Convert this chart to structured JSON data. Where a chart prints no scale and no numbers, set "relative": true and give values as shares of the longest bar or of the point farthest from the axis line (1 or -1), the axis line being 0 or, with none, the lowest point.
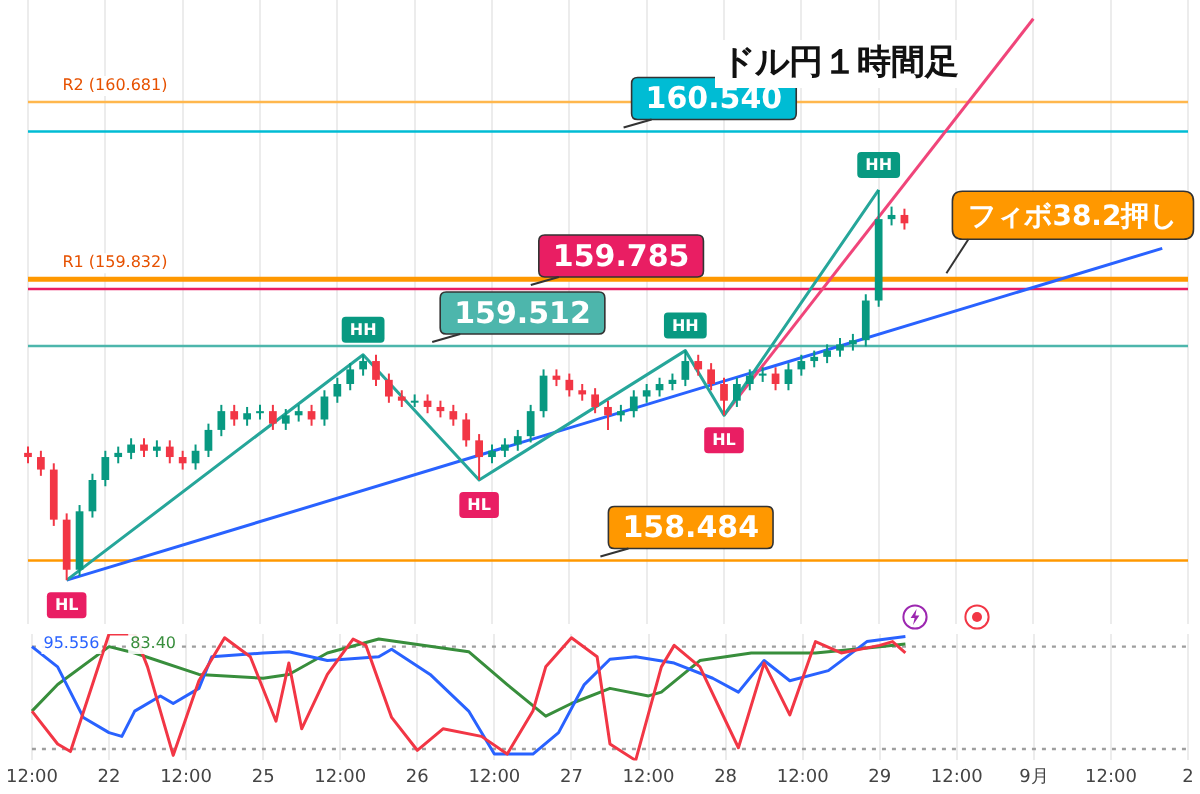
{
  "chart_data": [
    {
      "type": "candlestick",
      "title": "ドル円１時間足",
      "categories": [
        null,
        null,
        null,
        null,
        null,
        null,
        null,
        null,
        null,
        null,
        null,
        null,
        null,
        null,
        null,
        null,
        null,
        null,
        null,
        null,
        null,
        null,
        null,
        null,
        null,
        null,
        null,
        null,
        null,
        null,
        null,
        null,
        null,
        null,
        null,
        null,
        null,
        null,
        null,
        null,
        null,
        null,
        null,
        null,
        null,
        null,
        null,
        null,
        null,
        null,
        null,
        null,
        null,
        null,
        null,
        null,
        null,
        null,
        null,
        null,
        null,
        null,
        null,
        null,
        null,
        null,
        null,
        null,
        null,
        null,
        null,
        null,
        null,
        null,
        null,
        null,
        null,
        null,
        null,
        null,
        null,
        null,
        null,
        null,
        null,
        null,
        null,
        null,
        null,
        null,
        null
      ],
      "ohlc": [
        [
          159.0,
          159.03,
          158.95,
          158.98
        ],
        [
          158.98,
          159.01,
          158.89,
          158.92
        ],
        [
          158.92,
          158.95,
          158.65,
          158.68
        ],
        [
          158.68,
          158.71,
          158.39,
          158.44
        ],
        [
          158.44,
          158.75,
          158.41,
          158.72
        ],
        [
          158.72,
          158.9,
          158.69,
          158.87
        ],
        [
          158.87,
          159.01,
          158.84,
          158.98
        ],
        [
          158.98,
          159.03,
          158.95,
          159.0
        ],
        [
          159.0,
          159.07,
          158.97,
          159.04
        ],
        [
          159.04,
          159.07,
          158.98,
          159.01
        ],
        [
          159.01,
          159.06,
          158.98,
          159.03
        ],
        [
          159.03,
          159.06,
          158.95,
          158.98
        ],
        [
          158.98,
          159.01,
          158.92,
          158.95
        ],
        [
          158.95,
          159.04,
          158.92,
          159.01
        ],
        [
          159.01,
          159.14,
          158.98,
          159.11
        ],
        [
          159.11,
          159.23,
          159.08,
          159.2
        ],
        [
          159.2,
          159.23,
          159.13,
          159.16
        ],
        [
          159.16,
          159.22,
          159.13,
          159.19
        ],
        [
          159.19,
          159.23,
          159.16,
          159.2
        ],
        [
          159.2,
          159.23,
          159.11,
          159.14
        ],
        [
          159.14,
          159.21,
          159.11,
          159.18
        ],
        [
          159.18,
          159.23,
          159.15,
          159.2
        ],
        [
          159.2,
          159.23,
          159.13,
          159.16
        ],
        [
          159.16,
          159.3,
          159.13,
          159.27
        ],
        [
          159.27,
          159.36,
          159.24,
          159.33
        ],
        [
          159.33,
          159.43,
          159.3,
          159.4
        ],
        [
          159.4,
          159.47,
          159.37,
          159.44
        ],
        [
          159.44,
          159.47,
          159.32,
          159.35
        ],
        [
          159.35,
          159.38,
          159.24,
          159.27
        ],
        [
          159.27,
          159.3,
          159.22,
          159.25
        ],
        [
          159.25,
          159.28,
          159.22,
          159.25
        ],
        [
          159.25,
          159.28,
          159.19,
          159.22
        ],
        [
          159.22,
          159.25,
          159.17,
          159.2
        ],
        [
          159.2,
          159.23,
          159.13,
          159.16
        ],
        [
          159.16,
          159.19,
          159.03,
          159.06
        ],
        [
          159.06,
          159.09,
          158.87,
          158.98
        ],
        [
          158.98,
          159.04,
          158.95,
          159.01
        ],
        [
          159.01,
          159.07,
          158.98,
          159.04
        ],
        [
          159.04,
          159.11,
          159.01,
          159.08
        ],
        [
          159.08,
          159.23,
          159.05,
          159.2
        ],
        [
          159.2,
          159.4,
          159.17,
          159.37
        ],
        [
          159.37,
          159.4,
          159.32,
          159.35
        ],
        [
          159.35,
          159.38,
          159.27,
          159.3
        ],
        [
          159.3,
          159.33,
          159.25,
          159.28
        ],
        [
          159.28,
          159.31,
          159.19,
          159.22
        ],
        [
          159.22,
          159.25,
          159.11,
          159.18
        ],
        [
          159.18,
          159.23,
          159.15,
          159.2
        ],
        [
          159.2,
          159.3,
          159.17,
          159.27
        ],
        [
          159.27,
          159.33,
          159.24,
          159.3
        ],
        [
          159.3,
          159.36,
          159.27,
          159.33
        ],
        [
          159.33,
          159.38,
          159.3,
          159.35
        ],
        [
          159.35,
          159.49,
          159.32,
          159.44
        ],
        [
          159.44,
          159.47,
          159.37,
          159.4
        ],
        [
          159.4,
          159.43,
          159.3,
          159.33
        ],
        [
          159.33,
          159.36,
          159.18,
          159.25
        ],
        [
          159.25,
          159.36,
          159.22,
          159.33
        ],
        [
          159.33,
          159.4,
          159.3,
          159.37
        ],
        [
          159.37,
          159.41,
          159.34,
          159.38
        ],
        [
          159.38,
          159.41,
          159.3,
          159.33
        ],
        [
          159.33,
          159.43,
          159.3,
          159.4
        ],
        [
          159.4,
          159.47,
          159.37,
          159.44
        ],
        [
          159.44,
          159.49,
          159.41,
          159.46
        ],
        [
          159.46,
          159.52,
          159.43,
          159.49
        ],
        [
          159.49,
          159.55,
          159.46,
          159.52
        ],
        [
          159.52,
          159.57,
          159.49,
          159.54
        ],
        [
          159.54,
          159.76,
          159.51,
          159.73
        ],
        [
          159.73,
          160.26,
          159.7,
          160.12
        ],
        [
          160.12,
          160.18,
          160.09,
          160.14
        ],
        [
          160.14,
          160.17,
          160.07,
          160.1
        ],
        null,
        null,
        null,
        null,
        null,
        null,
        null,
        null,
        null,
        null,
        null,
        null,
        null,
        null,
        null,
        null,
        null,
        null,
        null,
        null,
        null,
        null
      ],
      "colors": [
        "#f23645",
        "#f23645",
        "#f23645",
        "#f23645",
        "#089981",
        "#089981",
        "#089981",
        "#089981",
        "#089981",
        "#f23645",
        "#089981",
        "#f23645",
        "#f23645",
        "#089981",
        "#089981",
        "#089981",
        "#f23645",
        "#089981",
        "#089981",
        "#f23645",
        "#089981",
        "#089981",
        "#f23645",
        "#089981",
        "#089981",
        "#089981",
        "#089981",
        "#f23645",
        "#f23645",
        "#f23645",
        "#089981",
        "#f23645",
        "#f23645",
        "#f23645",
        "#f23645",
        "#f23645",
        "#089981",
        "#089981",
        "#089981",
        "#089981",
        "#089981",
        "#f23645",
        "#f23645",
        "#f23645",
        "#f23645",
        "#f23645",
        "#089981",
        "#089981",
        "#089981",
        "#089981",
        "#089981",
        "#089981",
        "#f23645",
        "#f23645",
        "#f23645",
        "#089981",
        "#089981",
        "#089981",
        "#f23645",
        "#089981",
        "#089981",
        "#089981",
        "#089981",
        "#089981",
        "#089981",
        "#089981",
        "#089981",
        "#089981",
        "#f23645",
        null,
        null,
        null,
        null,
        null,
        null,
        null,
        null,
        null,
        null,
        null,
        null,
        null,
        null,
        null,
        null,
        null,
        null,
        null,
        null,
        null,
        null
      ],
      "ylim": [
        158.18,
        161.17
      ],
      "tick_labels": false,
      "grid": "x",
      "series": [
        {
          "type": "line",
          "color": "#26a69a",
          "values": [
            null,
            null,
            null,
            158.39,
            null,
            null,
            null,
            null,
            null,
            null,
            null,
            null,
            null,
            null,
            null,
            null,
            null,
            null,
            null,
            null,
            null,
            null,
            null,
            null,
            null,
            null,
            159.47,
            null,
            null,
            null,
            null,
            null,
            null,
            null,
            null,
            158.87,
            null,
            null,
            null,
            null,
            null,
            null,
            null,
            null,
            null,
            null,
            null,
            null,
            null,
            null,
            null,
            159.49,
            null,
            null,
            159.18,
            null,
            null,
            null,
            null,
            null,
            null,
            null,
            null,
            null,
            null,
            null,
            160.26,
            null,
            null,
            null,
            null,
            null,
            null,
            null,
            null,
            null,
            null,
            null,
            null,
            null,
            null,
            null,
            null,
            null,
            null,
            null,
            null,
            null,
            null,
            null,
            null
          ],
          "value_labels": [
            null,
            null,
            null,
            "HL",
            null,
            null,
            null,
            null,
            null,
            null,
            null,
            null,
            null,
            null,
            null,
            null,
            null,
            null,
            null,
            null,
            null,
            null,
            null,
            null,
            null,
            null,
            "HH",
            null,
            null,
            null,
            null,
            null,
            null,
            null,
            null,
            "HL",
            null,
            null,
            null,
            null,
            null,
            null,
            null,
            null,
            null,
            null,
            null,
            null,
            null,
            null,
            null,
            "HH",
            null,
            null,
            "HL",
            null,
            null,
            null,
            null,
            null,
            null,
            null,
            null,
            null,
            null,
            null,
            "HH",
            null,
            null,
            null,
            null,
            null,
            null,
            null,
            null,
            null,
            null,
            null,
            null,
            null,
            null,
            null,
            null,
            null,
            null,
            null,
            null,
            null,
            null,
            null,
            null
          ]
        },
        {
          "type": "line",
          "color": "#f0457a",
          "values": [
            null,
            null,
            null,
            null,
            null,
            null,
            null,
            null,
            null,
            null,
            null,
            null,
            null,
            null,
            null,
            null,
            null,
            null,
            null,
            null,
            null,
            null,
            null,
            null,
            null,
            null,
            null,
            null,
            null,
            null,
            null,
            null,
            null,
            null,
            null,
            null,
            null,
            null,
            null,
            null,
            null,
            null,
            null,
            null,
            null,
            null,
            null,
            null,
            null,
            null,
            null,
            null,
            null,
            null,
            159.18,
            null,
            null,
            null,
            null,
            null,
            null,
            null,
            null,
            null,
            null,
            null,
            null,
            null,
            null,
            null,
            null,
            null,
            null,
            null,
            null,
            null,
            null,
            null,
            161.08,
            null,
            null,
            null,
            null,
            null,
            null,
            null,
            null,
            null,
            null,
            null,
            null
          ]
        },
        {
          "type": "line",
          "color": "#2962ff",
          "values": [
            null,
            null,
            null,
            158.39,
            null,
            null,
            null,
            null,
            null,
            null,
            null,
            null,
            null,
            null,
            null,
            null,
            null,
            null,
            null,
            null,
            null,
            null,
            null,
            null,
            null,
            null,
            null,
            null,
            null,
            null,
            null,
            null,
            null,
            null,
            null,
            null,
            null,
            null,
            null,
            null,
            null,
            null,
            null,
            null,
            null,
            null,
            null,
            null,
            null,
            null,
            null,
            null,
            null,
            null,
            null,
            null,
            null,
            null,
            null,
            null,
            null,
            null,
            null,
            null,
            null,
            null,
            null,
            null,
            null,
            null,
            null,
            null,
            null,
            null,
            null,
            null,
            null,
            null,
            null,
            null,
            null,
            null,
            null,
            null,
            null,
            null,
            null,
            null,
            159.98,
            null,
            null
          ]
        }
      ],
      "ref_lines": [
        {
          "axis": "y",
          "value": 160.681,
          "label": "R2 (160.681)",
          "color": "#ffb74d"
        },
        {
          "axis": "y",
          "value": 160.54,
          "label": "160.540",
          "color": "#00bcd4"
        },
        {
          "axis": "y",
          "value": 159.832,
          "label": "R1 (159.832)",
          "color": "#ff9800"
        },
        {
          "axis": "y",
          "value": 159.785,
          "label": "159.785",
          "color": "#e91e63"
        },
        {
          "axis": "y",
          "value": 159.512,
          "label": "159.512",
          "color": "#4db6ac"
        },
        {
          "axis": "y",
          "value": 158.484,
          "label": "158.484",
          "color": "#ff9800"
        }
      ],
      "annotations": [
        {
          "text": "フィボ38.2押し",
          "y": 159.832
        }
      ]
    },
    {
      "type": "line",
      "relative": true,
      "categories": [
        "12:00",
        null,
        null,
        null,
        null,
        null,
        "22",
        null,
        null,
        null,
        null,
        null,
        "12:00",
        null,
        null,
        null,
        null,
        null,
        "25",
        null,
        null,
        null,
        null,
        null,
        "12:00",
        null,
        null,
        null,
        null,
        null,
        "26",
        null,
        null,
        null,
        null,
        null,
        "12:00",
        null,
        null,
        null,
        null,
        null,
        "27",
        null,
        null,
        null,
        null,
        null,
        "12:00",
        null,
        null,
        null,
        null,
        null,
        "28",
        null,
        null,
        null,
        null,
        null,
        "12:00",
        null,
        null,
        null,
        null,
        null,
        "29",
        null,
        null,
        null,
        null,
        null,
        "12:00",
        null,
        null,
        null,
        null,
        null,
        "9月",
        null,
        null,
        null,
        null,
        null,
        "12:00",
        null,
        null,
        null,
        null,
        null,
        "2"
      ],
      "tick_labels": "x",
      "grid": "x",
      "series": [
        {
          "color": "#f23645",
          "values": [
            0.39,
            null,
            0.13,
            0.07,
            null,
            null,
            1.0,
            null,
            1.0,
            0.74,
            null,
            0.04,
            null,
            0.63,
            null,
            0.97,
            null,
            0.82,
            null,
            0.31,
            0.77,
            0.25,
            null,
            0.68,
            null,
            0.96,
            0.91,
            null,
            0.34,
            null,
            0.08,
            null,
            0.25,
            null,
            null,
            0.19,
            null,
            0.05,
            null,
            0.39,
            0.74,
            null,
            0.97,
            null,
            0.82,
            0.13,
            null,
            0,
            null,
            0.74,
            0.91,
            null,
            0.74,
            null,
            null,
            0.1,
            null,
            0.77,
            null,
            0.36,
            null,
            0.94,
            null,
            0.85,
            null,
            null,
            0.91,
            0.94,
            0.85,
            null,
            null,
            null,
            null,
            null,
            null,
            null,
            null,
            null,
            null,
            null,
            null,
            null,
            null,
            null,
            null,
            null,
            null,
            null,
            null,
            null,
            null
          ]
        },
        {
          "color": "#2962ff",
          "values": [
            0.9,
            null,
            0.74,
            null,
            0.34,
            null,
            0.22,
            0.19,
            0.39,
            null,
            0.51,
            0.45,
            null,
            0.57,
            0.82,
            null,
            null,
            null,
            0.85,
            null,
            0.86,
            null,
            null,
            0.79,
            null,
            null,
            null,
            0.82,
            0.88,
            null,
            null,
            0.68,
            null,
            null,
            0.39,
            null,
            0.05,
            null,
            null,
            0.05,
            null,
            0.22,
            null,
            0.6,
            null,
            0.8,
            null,
            0.82,
            null,
            null,
            0.77,
            null,
            null,
            0.65,
            null,
            0.54,
            null,
            0.79,
            null,
            0.63,
            null,
            null,
            0.71,
            null,
            null,
            0.94,
            null,
            null,
            0.98,
            null,
            null,
            null,
            null,
            null,
            null,
            null,
            null,
            null,
            null,
            null,
            null,
            null,
            null,
            null,
            null,
            null,
            null,
            null,
            null,
            null,
            null
          ]
        },
        {
          "color": "#388e3c",
          "values": [
            0.39,
            null,
            0.6,
            null,
            null,
            null,
            0.9,
            null,
            0.85,
            null,
            null,
            null,
            null,
            0.68,
            null,
            null,
            null,
            null,
            0.65,
            null,
            0.68,
            null,
            null,
            0.85,
            null,
            null,
            null,
            0.96,
            null,
            null,
            null,
            null,
            null,
            null,
            0.86,
            null,
            null,
            0.6,
            null,
            null,
            0.35,
            null,
            0.45,
            null,
            null,
            0.57,
            null,
            null,
            0.51,
            0.54,
            null,
            null,
            0.79,
            null,
            null,
            null,
            0.85,
            null,
            null,
            null,
            null,
            0.85,
            null,
            null,
            null,
            null,
            0.9,
            null,
            0.92,
            null,
            null,
            null,
            null,
            null,
            null,
            null,
            null,
            null,
            null,
            null,
            null,
            null,
            null,
            null,
            null,
            null,
            null,
            null,
            null,
            null,
            null
          ]
        }
      ],
      "ref_lines": [
        {
          "axis": "y",
          "value": 0.9,
          "line_style": "dotted"
        },
        {
          "axis": "y",
          "value": 0.09,
          "line_style": "dotted"
        }
      ],
      "annotations": [
        "95.556",
        "83.40"
      ]
    }
  ]
}
